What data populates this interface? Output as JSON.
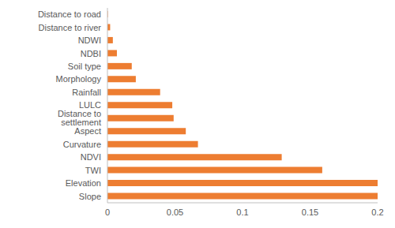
{
  "chart_data": {
    "type": "bar",
    "orientation": "horizontal",
    "categories": [
      "Distance to road",
      "Distance to river",
      "NDWI",
      "NDBI",
      "Soil type",
      "Morphology",
      "Rainfall",
      "LULC",
      "Distance to settlement",
      "Aspect",
      "Curvature",
      "NDVI",
      "TWI",
      "Elevation",
      "Slope"
    ],
    "values": [
      0.0003,
      0.002,
      0.004,
      0.007,
      0.018,
      0.021,
      0.039,
      0.048,
      0.049,
      0.058,
      0.067,
      0.129,
      0.159,
      0.2,
      0.2
    ],
    "color": "#ed7d31",
    "xlim": [
      0,
      0.2
    ],
    "xticks": [
      0,
      0.05,
      0.1,
      0.15,
      0.2
    ],
    "grid": false
  }
}
